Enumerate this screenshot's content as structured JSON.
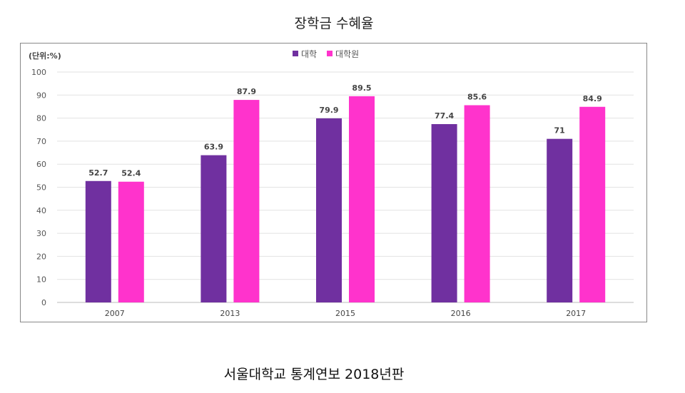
{
  "title": "장학금 수혜율",
  "caption": "서울대학교 통계연보 2018년판",
  "chart_data": {
    "type": "bar",
    "title": "",
    "unit_label": "(단위:%)",
    "categories": [
      "2007",
      "2013",
      "2015",
      "2016",
      "2017"
    ],
    "series": [
      {
        "name": "대학",
        "color": "#7030A0",
        "values": [
          52.7,
          63.9,
          79.9,
          77.4,
          71
        ]
      },
      {
        "name": "대학원",
        "color": "#FF33CC",
        "values": [
          52.4,
          87.9,
          89.5,
          85.6,
          84.9
        ]
      }
    ],
    "ylim": [
      0,
      100
    ],
    "yticks": [
      0,
      10,
      20,
      30,
      40,
      50,
      60,
      70,
      80,
      90,
      100
    ],
    "grid": true,
    "legend": "top-center",
    "data_labels": true
  }
}
